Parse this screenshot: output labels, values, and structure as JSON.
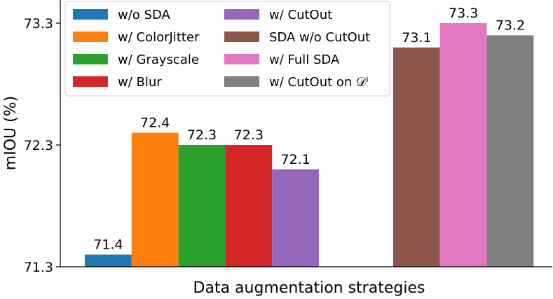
{
  "chart_data": {
    "type": "bar",
    "title": "",
    "xlabel": "Data augmentation strategies",
    "ylabel": "mIOU (%)",
    "ylim": [
      71.3,
      73.3
    ],
    "yticks": [
      71.3,
      72.3,
      73.3
    ],
    "grid": false,
    "legend_position": "top-left",
    "groups": [
      {
        "bars": [
          {
            "name": "w/o SDA",
            "value": 71.4,
            "label": "71.4",
            "color": "#1f77b4"
          },
          {
            "name": "w/ ColorJitter",
            "value": 72.4,
            "label": "72.4",
            "color": "#ff7f0e"
          },
          {
            "name": "w/ Grayscale",
            "value": 72.3,
            "label": "72.3",
            "color": "#2ca02c"
          },
          {
            "name": "w/ Blur",
            "value": 72.3,
            "label": "72.3",
            "color": "#d62728"
          },
          {
            "name": "w/ CutOut",
            "value": 72.1,
            "label": "72.1",
            "color": "#9467bd"
          }
        ]
      },
      {
        "bars": [
          {
            "name": "SDA w/o CutOut",
            "value": 73.1,
            "label": "73.1",
            "color": "#8c564b"
          },
          {
            "name": "w/ Full SDA",
            "value": 73.3,
            "label": "73.3",
            "color": "#e377c2"
          },
          {
            "name": "w/ CutOut on 𝒟ˡ",
            "value": 73.2,
            "label": "73.2",
            "color": "#7f7f7f"
          }
        ]
      }
    ],
    "legend": [
      {
        "label": "w/o SDA",
        "color": "#1f77b4"
      },
      {
        "label": "w/ ColorJitter",
        "color": "#ff7f0e"
      },
      {
        "label": "w/ Grayscale",
        "color": "#2ca02c"
      },
      {
        "label": "w/ Blur",
        "color": "#d62728"
      },
      {
        "label": "w/ CutOut",
        "color": "#9467bd"
      },
      {
        "label": "SDA w/o CutOut",
        "color": "#8c564b"
      },
      {
        "label": "w/ Full SDA",
        "color": "#e377c2"
      },
      {
        "label": "w/ CutOut on 𝒟ˡ",
        "color": "#7f7f7f"
      }
    ]
  }
}
